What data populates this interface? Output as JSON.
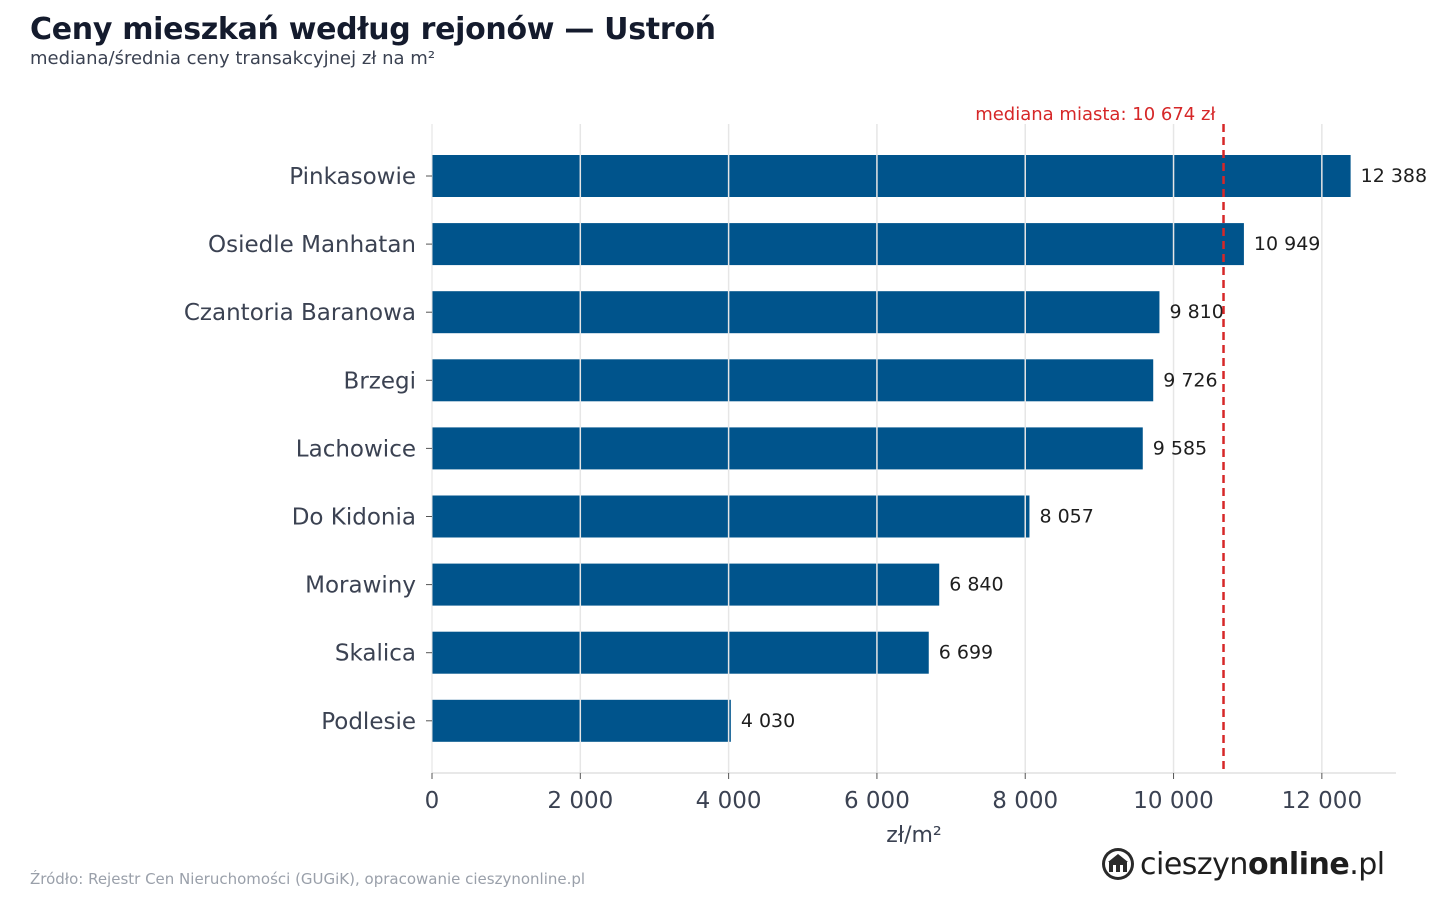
{
  "header": {
    "title": "Ceny mieszkań według rejonów — Ustroń",
    "subtitle": "mediana/średnia ceny transakcyjnej zł na m²"
  },
  "chart_data": {
    "type": "bar",
    "orientation": "horizontal",
    "categories": [
      "Pinkasowie",
      "Osiedle Manhatan",
      "Czantoria Baranowa",
      "Brzegi",
      "Lachowice",
      "Do Kidonia",
      "Morawiny",
      "Skalica",
      "Podlesie"
    ],
    "values": [
      12388,
      10949,
      9810,
      9726,
      9585,
      8057,
      6840,
      6699,
      4030
    ],
    "value_labels": [
      "12 388",
      "10 949",
      "9 810",
      "9 726",
      "9 585",
      "8 057",
      "6 840",
      "6 699",
      "4 030"
    ],
    "xlabel": "zł/m²",
    "xlim": [
      0,
      13000
    ],
    "xticks": [
      0,
      2000,
      4000,
      6000,
      8000,
      10000,
      12000
    ],
    "xtick_labels": [
      "0",
      "2 000",
      "4 000",
      "6 000",
      "8 000",
      "10 000",
      "12 000"
    ],
    "grid": true,
    "reference_line": {
      "value": 10674,
      "label": "mediana miasta: 10 674 zł",
      "style": "dashed",
      "color": "#d62728"
    },
    "bar_color": "#00548c"
  },
  "footer": {
    "source": "Źródło: Rejestr Cen Nieruchomości (GUGiK), opracowanie cieszynonline.pl",
    "brand_prefix": "cieszyn",
    "brand_bold": "online",
    "brand_suffix": ".pl",
    "brand_icon": "cieszyn-logo-icon"
  }
}
